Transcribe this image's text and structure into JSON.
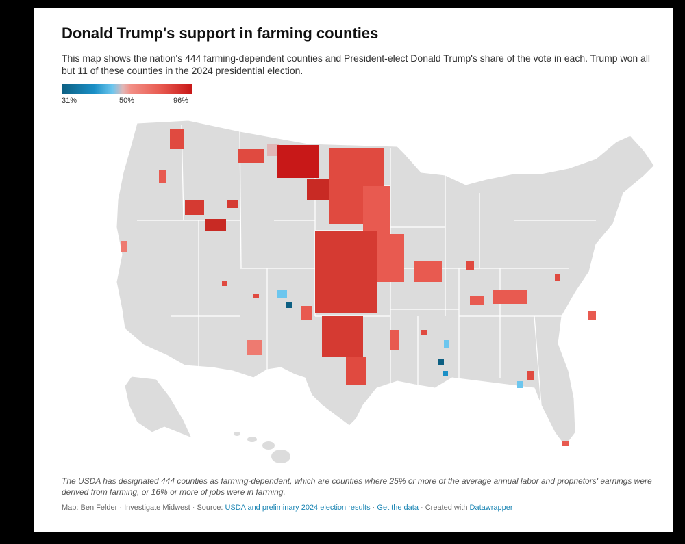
{
  "title": "Donald Trump's support in farming counties",
  "subtitle": "This map shows the nation's 444 farming-dependent counties and President-elect Donald Trump's share of the vote in each. Trump won all but 11 of these counties in the 2024 presidential election.",
  "legend": {
    "min": "31%",
    "mid": "50%",
    "max": "96%"
  },
  "colors": {
    "low": "#0d5f82",
    "lowMid": "#6cc6ee",
    "neutral": "#e0b7b7",
    "highMid": "#f28f86",
    "high": "#c81818",
    "land": "#dcdcdc",
    "border": "#ffffff"
  },
  "notes": "The USDA has designated 444 counties as farming-dependent, which are counties where 25% or more of the average annual labor and proprietors' earnings were derived from farming, or 16% or more of jobs were in farming.",
  "footer": {
    "credit": "Map: Ben Felder · Investigate Midwest · Source: ",
    "source_link": "USDA and preliminary 2024 election results",
    "sep1": " · ",
    "data_link": "Get the data",
    "sep2": " · Created with ",
    "tool_link": "Datawrapper"
  }
}
